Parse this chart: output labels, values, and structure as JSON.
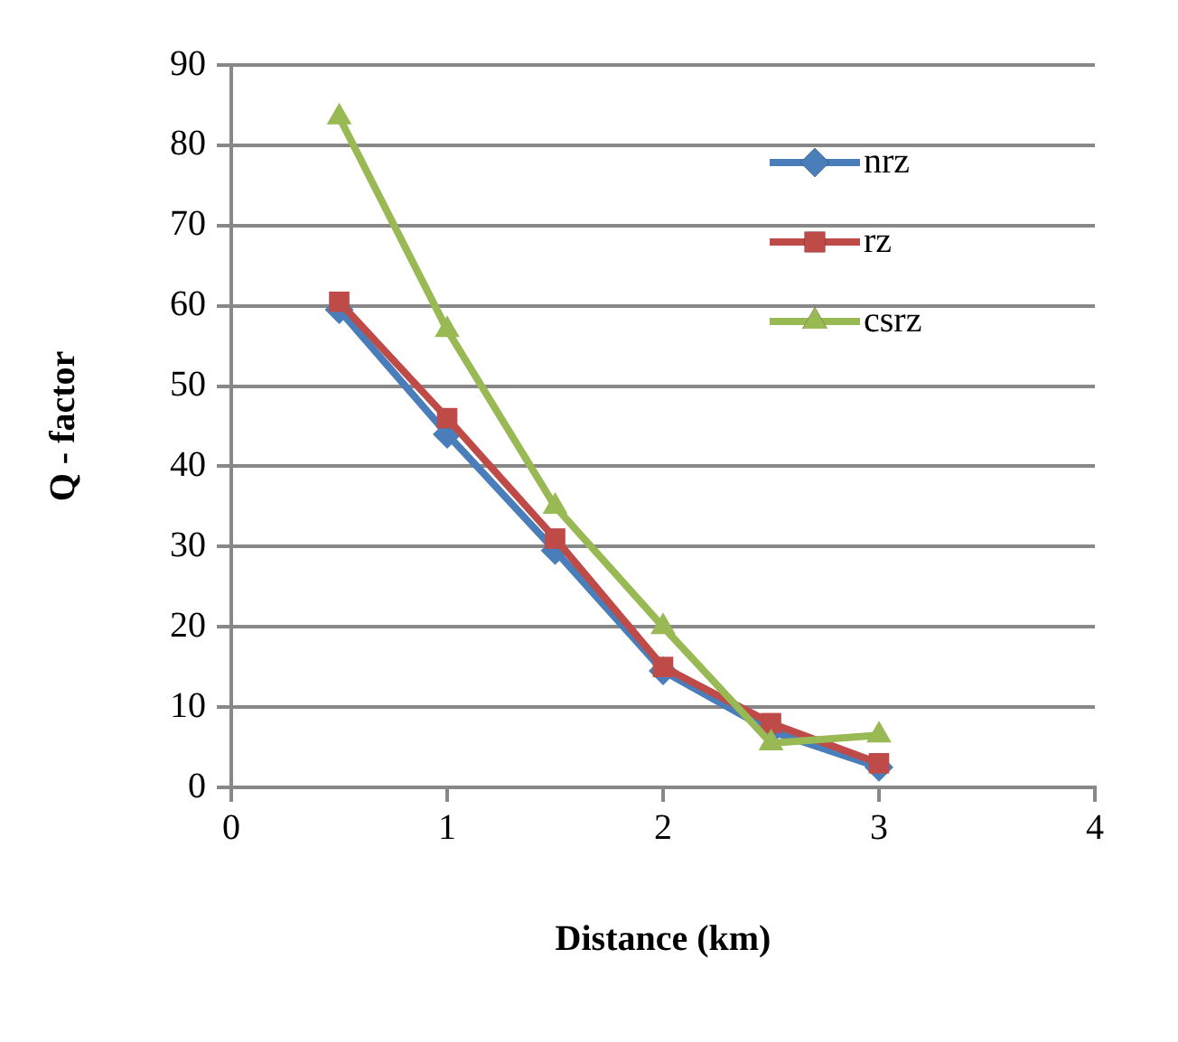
{
  "chart_data": {
    "type": "line",
    "xlabel": "Distance (km)",
    "ylabel": "Q - factor",
    "x": [
      0.5,
      1,
      1.5,
      2,
      2.5,
      3
    ],
    "series": [
      {
        "name": "nrz",
        "color": "#4a7ebb",
        "marker": "diamond",
        "values": [
          59.5,
          44,
          29.5,
          14.5,
          7,
          2.5
        ]
      },
      {
        "name": "rz",
        "color": "#be4b48",
        "marker": "square",
        "values": [
          60.5,
          46,
          31,
          15,
          8,
          3
        ]
      },
      {
        "name": "csrz",
        "color": "#98b954",
        "marker": "triangle",
        "values": [
          83.5,
          57,
          35,
          20,
          5.5,
          6.5
        ]
      }
    ],
    "xlim": [
      0,
      4
    ],
    "xticks": [
      0,
      1,
      2,
      3,
      4
    ],
    "ylim": [
      0,
      90
    ],
    "yticks": [
      0,
      10,
      20,
      30,
      40,
      50,
      60,
      70,
      80,
      90
    ],
    "grid": "y",
    "legend": "right",
    "line_style": "solid"
  }
}
